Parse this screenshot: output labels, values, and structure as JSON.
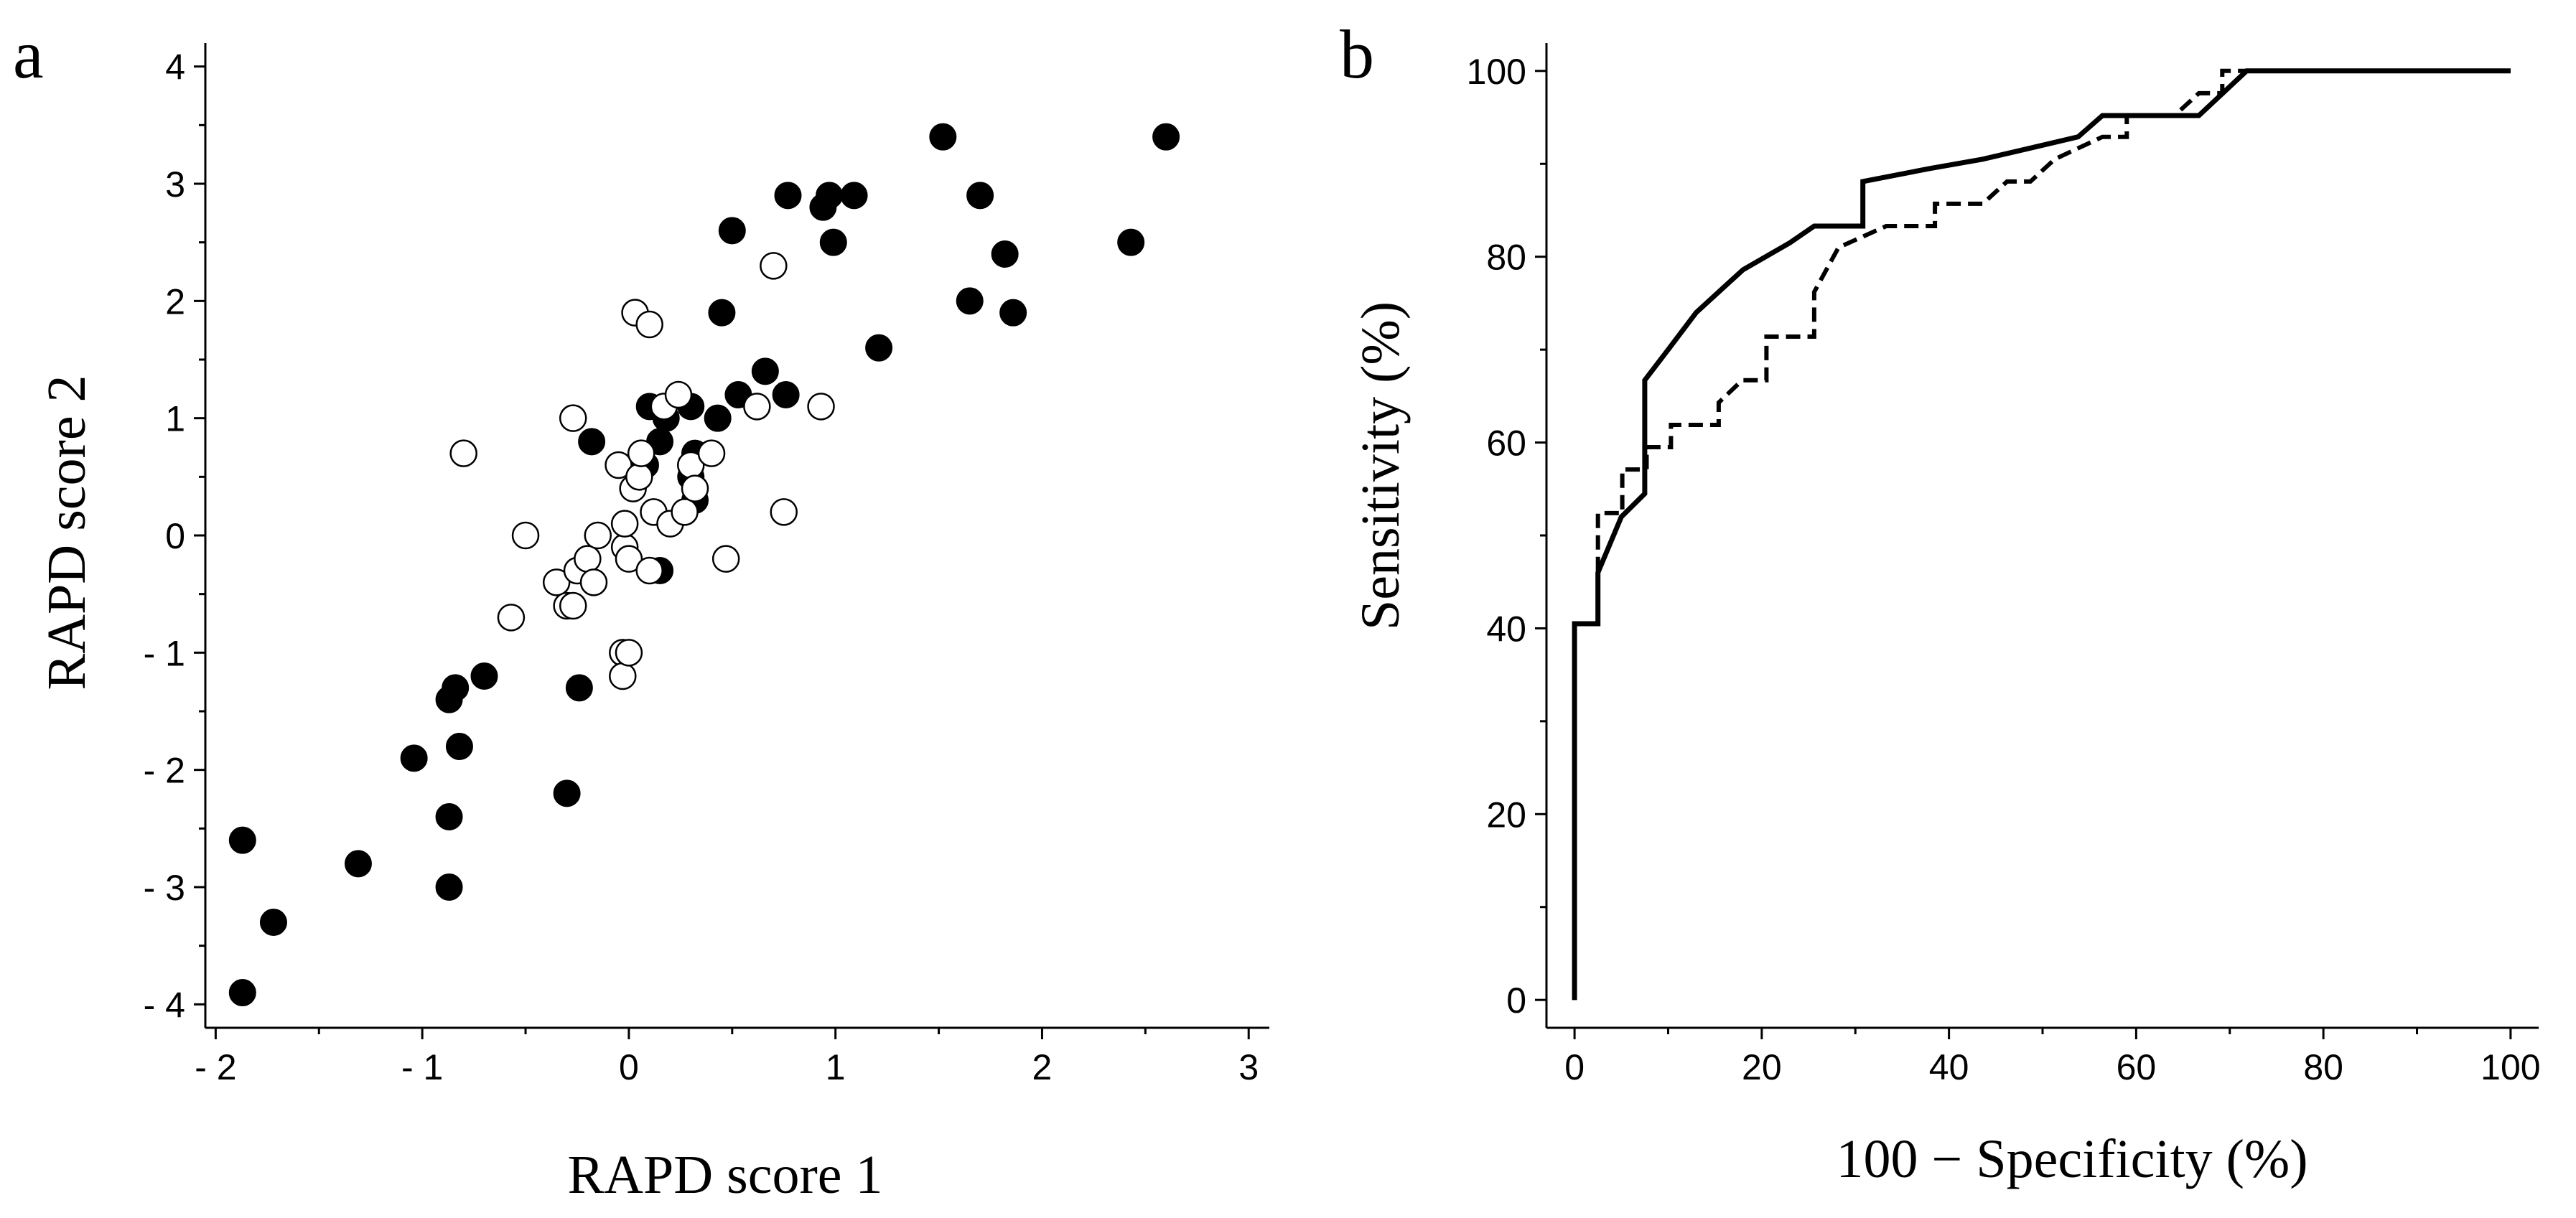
{
  "chart_data": [
    {
      "panel": "a",
      "type": "scatter",
      "xlabel": "RAPD score 1",
      "ylabel": "RAPD score 2",
      "xlim": [
        -2.05,
        3.1
      ],
      "ylim": [
        -4.2,
        4.2
      ],
      "xticks": [
        -2,
        -1,
        0,
        1,
        2,
        3
      ],
      "yticks": [
        -4,
        -3,
        -2,
        -1,
        0,
        1,
        2,
        3,
        4
      ],
      "xtick_labels": [
        "- 2",
        "- 1",
        "0",
        "1",
        "2",
        "3"
      ],
      "ytick_labels": [
        "- 4",
        "- 3",
        "- 2",
        "- 1",
        "0",
        "1",
        "2",
        "3",
        "4"
      ],
      "series": [
        {
          "name": "filled",
          "marker": "filled-circle",
          "color": "#000000",
          "points": [
            [
              -1.87,
              -3.9
            ],
            [
              -1.87,
              -2.6
            ],
            [
              -1.72,
              -3.3
            ],
            [
              -1.31,
              -2.8
            ],
            [
              -1.04,
              -1.9
            ],
            [
              -0.87,
              -1.4
            ],
            [
              -0.84,
              -1.3
            ],
            [
              -0.87,
              -2.4
            ],
            [
              -0.87,
              -3.0
            ],
            [
              -0.82,
              -1.8
            ],
            [
              -0.7,
              -1.2
            ],
            [
              -0.3,
              -2.2
            ],
            [
              -0.24,
              -1.3
            ],
            [
              -0.18,
              0.8
            ],
            [
              0.08,
              0.6
            ],
            [
              0.1,
              1.1
            ],
            [
              0.15,
              0.8
            ],
            [
              0.18,
              1.0
            ],
            [
              0.15,
              -0.3
            ],
            [
              0.3,
              0.5
            ],
            [
              0.32,
              0.3
            ],
            [
              0.3,
              1.1
            ],
            [
              0.32,
              0.7
            ],
            [
              0.43,
              1.0
            ],
            [
              0.45,
              1.9
            ],
            [
              0.5,
              2.6
            ],
            [
              0.53,
              1.2
            ],
            [
              0.66,
              1.4
            ],
            [
              0.76,
              1.2
            ],
            [
              0.77,
              2.9
            ],
            [
              0.94,
              2.8
            ],
            [
              0.97,
              2.9
            ],
            [
              0.99,
              2.5
            ],
            [
              1.09,
              2.9
            ],
            [
              1.21,
              1.6
            ],
            [
              1.52,
              3.4
            ],
            [
              1.65,
              2.0
            ],
            [
              1.7,
              2.9
            ],
            [
              1.82,
              2.4
            ],
            [
              1.86,
              1.9
            ],
            [
              2.43,
              2.5
            ],
            [
              2.6,
              3.4
            ]
          ]
        },
        {
          "name": "open",
          "marker": "open-circle",
          "color": "#000000",
          "points": [
            [
              -0.8,
              0.7
            ],
            [
              -0.57,
              -0.7
            ],
            [
              -0.5,
              0.0
            ],
            [
              -0.35,
              -0.4
            ],
            [
              -0.3,
              -0.6
            ],
            [
              -0.27,
              -0.6
            ],
            [
              -0.27,
              1.0
            ],
            [
              -0.25,
              -0.3
            ],
            [
              -0.2,
              -0.2
            ],
            [
              -0.17,
              -0.4
            ],
            [
              -0.15,
              0.0
            ],
            [
              -0.05,
              0.6
            ],
            [
              -0.03,
              -1.0
            ],
            [
              -0.03,
              -1.2
            ],
            [
              -0.02,
              -0.1
            ],
            [
              -0.02,
              0.1
            ],
            [
              0.0,
              -0.2
            ],
            [
              0.0,
              -1.0
            ],
            [
              0.02,
              0.4
            ],
            [
              0.03,
              1.9
            ],
            [
              0.05,
              0.5
            ],
            [
              0.06,
              0.7
            ],
            [
              0.1,
              1.8
            ],
            [
              0.1,
              -0.3
            ],
            [
              0.12,
              0.2
            ],
            [
              0.17,
              1.1
            ],
            [
              0.2,
              0.1
            ],
            [
              0.24,
              1.2
            ],
            [
              0.27,
              0.2
            ],
            [
              0.3,
              0.6
            ],
            [
              0.32,
              0.4
            ],
            [
              0.4,
              0.7
            ],
            [
              0.47,
              -0.2
            ],
            [
              0.62,
              1.1
            ],
            [
              0.7,
              2.3
            ],
            [
              0.75,
              0.2
            ],
            [
              0.93,
              1.1
            ]
          ]
        }
      ]
    },
    {
      "panel": "b",
      "type": "line",
      "xlabel": "100 − Specificity (%)",
      "ylabel": "Sensitivity (%)",
      "xlim": [
        -3,
        103
      ],
      "ylim": [
        -3,
        103
      ],
      "xticks": [
        0,
        20,
        40,
        60,
        80,
        100
      ],
      "yticks": [
        0,
        20,
        40,
        60,
        80,
        100
      ],
      "xtick_labels": [
        "0",
        "20",
        "40",
        "60",
        "80",
        "100"
      ],
      "ytick_labels": [
        "0",
        "20",
        "40",
        "60",
        "80",
        "100"
      ],
      "series": [
        {
          "name": "solid ROC",
          "style": "solid",
          "color": "#000000",
          "points": [
            [
              0,
              0
            ],
            [
              0,
              40.5
            ],
            [
              2.5,
              40.5
            ],
            [
              2.5,
              46
            ],
            [
              5,
              52
            ],
            [
              7.5,
              54.5
            ],
            [
              7.5,
              66.7
            ],
            [
              10,
              70
            ],
            [
              13,
              74
            ],
            [
              18,
              78.6
            ],
            [
              23,
              81.5
            ],
            [
              25.6,
              83.3
            ],
            [
              30.8,
              83.3
            ],
            [
              30.8,
              88.1
            ],
            [
              38,
              89.5
            ],
            [
              43.6,
              90.5
            ],
            [
              48.7,
              91.7
            ],
            [
              53.8,
              92.9
            ],
            [
              56.4,
              95.2
            ],
            [
              66.7,
              95.2
            ],
            [
              71.8,
              100
            ],
            [
              100,
              100
            ]
          ]
        },
        {
          "name": "dashed ROC",
          "style": "dashed",
          "color": "#000000",
          "points": [
            [
              0,
              0
            ],
            [
              0,
              40.5
            ],
            [
              2.5,
              40.5
            ],
            [
              2.5,
              52.4
            ],
            [
              5.1,
              52.4
            ],
            [
              5.1,
              57.1
            ],
            [
              7.7,
              57.1
            ],
            [
              7.7,
              59.5
            ],
            [
              10.3,
              59.5
            ],
            [
              10.3,
              61.9
            ],
            [
              15.4,
              61.9
            ],
            [
              15.4,
              64.3
            ],
            [
              17.9,
              66.7
            ],
            [
              20.5,
              66.7
            ],
            [
              20.5,
              71.4
            ],
            [
              25.6,
              71.4
            ],
            [
              25.6,
              76.2
            ],
            [
              28.2,
              81
            ],
            [
              33.3,
              83.3
            ],
            [
              38.5,
              83.3
            ],
            [
              38.5,
              85.7
            ],
            [
              43.6,
              85.7
            ],
            [
              46.2,
              88.1
            ],
            [
              48.7,
              88.1
            ],
            [
              51.3,
              90.5
            ],
            [
              56.4,
              92.9
            ],
            [
              59,
              92.9
            ],
            [
              59,
              95.2
            ],
            [
              64.1,
              95.2
            ],
            [
              66.7,
              97.6
            ],
            [
              69.2,
              97.6
            ],
            [
              69.2,
              100
            ],
            [
              100,
              100
            ]
          ]
        }
      ]
    }
  ]
}
